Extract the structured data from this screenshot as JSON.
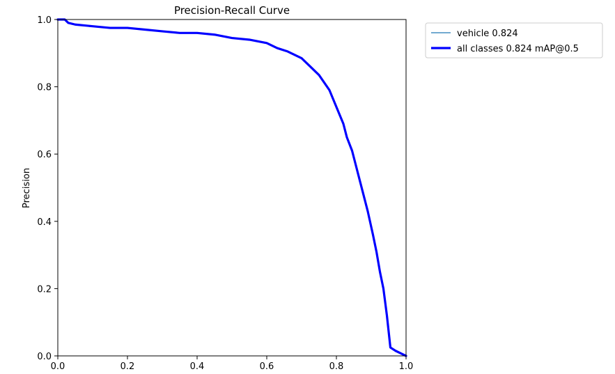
{
  "chart_data": {
    "type": "line",
    "title": "Precision-Recall Curve",
    "xlabel": "",
    "ylabel": "Precision",
    "xlim": [
      0,
      1
    ],
    "ylim": [
      0,
      1
    ],
    "x_ticks": [
      "0.0",
      "0.2",
      "0.4",
      "0.6",
      "0.8",
      "1.0"
    ],
    "y_ticks": [
      "0.0",
      "0.2",
      "0.4",
      "0.6",
      "0.8",
      "1.0"
    ],
    "grid": false,
    "legend_position": "outside-top-right",
    "series": [
      {
        "name": "vehicle 0.824",
        "color": "#1f77b4",
        "points": [
          [
            0.0,
            1.0
          ],
          [
            0.02,
            1.0
          ],
          [
            0.03,
            0.99
          ],
          [
            0.05,
            0.985
          ],
          [
            0.1,
            0.98
          ],
          [
            0.15,
            0.975
          ],
          [
            0.2,
            0.975
          ],
          [
            0.25,
            0.97
          ],
          [
            0.3,
            0.965
          ],
          [
            0.35,
            0.96
          ],
          [
            0.4,
            0.96
          ],
          [
            0.45,
            0.955
          ],
          [
            0.5,
            0.945
          ],
          [
            0.55,
            0.94
          ],
          [
            0.6,
            0.93
          ],
          [
            0.63,
            0.915
          ],
          [
            0.66,
            0.905
          ],
          [
            0.7,
            0.885
          ],
          [
            0.72,
            0.865
          ],
          [
            0.75,
            0.835
          ],
          [
            0.78,
            0.79
          ],
          [
            0.8,
            0.74
          ],
          [
            0.82,
            0.69
          ],
          [
            0.83,
            0.65
          ],
          [
            0.845,
            0.61
          ],
          [
            0.86,
            0.55
          ],
          [
            0.875,
            0.49
          ],
          [
            0.89,
            0.43
          ],
          [
            0.905,
            0.36
          ],
          [
            0.915,
            0.31
          ],
          [
            0.925,
            0.25
          ],
          [
            0.935,
            0.2
          ],
          [
            0.945,
            0.12
          ],
          [
            0.955,
            0.025
          ],
          [
            0.97,
            0.015
          ],
          [
            1.0,
            0.0
          ]
        ]
      },
      {
        "name": "all classes 0.824 mAP@0.5",
        "color": "#0000ff",
        "points": [
          [
            0.0,
            1.0
          ],
          [
            0.02,
            1.0
          ],
          [
            0.03,
            0.99
          ],
          [
            0.05,
            0.985
          ],
          [
            0.1,
            0.98
          ],
          [
            0.15,
            0.975
          ],
          [
            0.2,
            0.975
          ],
          [
            0.25,
            0.97
          ],
          [
            0.3,
            0.965
          ],
          [
            0.35,
            0.96
          ],
          [
            0.4,
            0.96
          ],
          [
            0.45,
            0.955
          ],
          [
            0.5,
            0.945
          ],
          [
            0.55,
            0.94
          ],
          [
            0.6,
            0.93
          ],
          [
            0.63,
            0.915
          ],
          [
            0.66,
            0.905
          ],
          [
            0.7,
            0.885
          ],
          [
            0.72,
            0.865
          ],
          [
            0.75,
            0.835
          ],
          [
            0.78,
            0.79
          ],
          [
            0.8,
            0.74
          ],
          [
            0.82,
            0.69
          ],
          [
            0.83,
            0.65
          ],
          [
            0.845,
            0.61
          ],
          [
            0.86,
            0.55
          ],
          [
            0.875,
            0.49
          ],
          [
            0.89,
            0.43
          ],
          [
            0.905,
            0.36
          ],
          [
            0.915,
            0.31
          ],
          [
            0.925,
            0.25
          ],
          [
            0.935,
            0.2
          ],
          [
            0.945,
            0.12
          ],
          [
            0.955,
            0.025
          ],
          [
            0.97,
            0.015
          ],
          [
            1.0,
            0.0
          ]
        ]
      }
    ]
  }
}
